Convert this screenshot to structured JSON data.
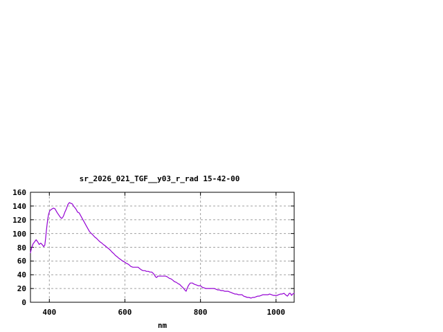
{
  "chart": {
    "background": "#ffffff",
    "border_color": "#000000",
    "grid_color": "#a0a0a0",
    "text_color": "#000000"
  },
  "chart_data": {
    "type": "line",
    "title": "sr_2026_021_TGF__y03_r_rad 15-42-00",
    "xlabel": "nm",
    "ylabel": "",
    "xlim": [
      350,
      1048
    ],
    "ylim": [
      0,
      160
    ],
    "x_ticks": [
      400,
      600,
      800,
      1000
    ],
    "y_ticks": [
      0,
      20,
      40,
      60,
      80,
      100,
      120,
      140,
      160
    ],
    "grid": true,
    "legend": false,
    "series": [
      {
        "name": "sr_2026_021_TGF__y03_r_rad",
        "color": "#9400d3",
        "x": [
          350,
          353,
          357,
          361,
          365,
          369,
          373,
          377,
          381,
          385,
          388,
          390,
          392,
          394,
          396,
          398,
          401,
          405,
          411,
          415,
          420,
          425,
          430,
          433,
          437,
          441,
          445,
          449,
          453,
          457,
          461,
          464,
          470,
          475,
          479,
          483,
          488,
          492,
          497,
          502,
          506,
          511,
          515,
          520,
          525,
          530,
          534,
          539,
          543,
          548,
          552,
          557,
          561,
          566,
          570,
          575,
          580,
          584,
          589,
          594,
          598,
          603,
          607,
          612,
          616,
          621,
          625,
          630,
          635,
          639,
          644,
          648,
          653,
          657,
          662,
          666,
          671,
          675,
          678,
          681,
          684,
          687,
          690,
          694,
          699,
          703,
          708,
          712,
          717,
          722,
          727,
          731,
          736,
          741,
          745,
          750,
          754,
          757,
          760,
          762,
          764,
          767,
          770,
          773,
          776,
          779,
          781,
          785,
          790,
          794,
          800,
          804,
          809,
          814,
          818,
          823,
          827,
          832,
          836,
          841,
          845,
          850,
          854,
          859,
          864,
          868,
          873,
          877,
          882,
          886,
          891,
          896,
          900,
          905,
          910,
          914,
          919,
          924,
          928,
          934,
          938,
          943,
          947,
          952,
          956,
          961,
          965,
          970,
          975,
          979,
          983,
          988,
          993,
          998,
          1003,
          1007,
          1012,
          1016,
          1021,
          1025,
          1030,
          1033,
          1035,
          1038,
          1041,
          1044,
          1048
        ],
        "y": [
          72,
          79,
          85,
          88,
          91,
          88,
          84,
          86,
          84,
          81,
          83,
          92,
          103,
          113,
          122,
          128,
          133,
          135,
          137,
          136,
          131,
          127,
          123,
          122,
          125,
          131,
          136,
          142,
          145,
          144,
          143,
          140,
          136,
          131,
          130,
          126,
          121,
          117,
          112,
          107,
          103,
          100,
          98,
          95,
          93,
          90,
          88,
          86,
          84,
          82,
          80,
          78,
          76,
          73,
          71,
          68,
          66,
          64,
          62,
          60,
          59,
          57,
          56,
          54,
          52,
          51,
          51,
          51,
          51,
          49,
          47,
          46,
          46,
          45,
          45,
          44,
          44,
          42,
          40,
          37,
          36,
          38,
          38,
          38,
          38,
          38,
          38,
          37,
          35,
          34,
          32,
          30,
          29,
          27,
          26,
          23,
          21,
          19,
          17,
          16,
          19,
          23,
          26,
          28,
          28,
          28,
          27,
          26,
          25,
          24,
          24,
          22,
          21,
          20,
          20,
          20,
          20,
          20,
          20,
          19,
          18,
          18,
          17,
          17,
          16,
          16,
          16,
          15,
          14,
          13,
          12,
          12,
          11,
          11,
          11,
          9,
          8,
          7,
          7,
          6,
          7,
          7,
          8,
          9,
          9,
          10,
          11,
          11,
          11,
          11,
          12,
          11,
          10,
          10,
          10,
          11,
          12,
          12,
          13,
          11,
          9,
          11,
          13,
          13,
          10,
          12,
          13
        ]
      }
    ]
  }
}
